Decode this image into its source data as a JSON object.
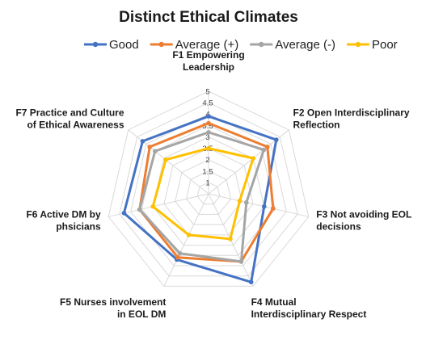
{
  "chart_data": {
    "type": "radar",
    "title": "Distinct Ethical Climates",
    "legend_position": "top",
    "grid": true,
    "rlim": [
      0.5,
      5
    ],
    "ticks": [
      "1",
      "1.5",
      "2",
      "2.5",
      "3",
      "3.5",
      "4",
      "4.5",
      "5"
    ],
    "categories": [
      [
        "F1 Empowering",
        "Leadership"
      ],
      [
        "F2 Open Interdisciplinary",
        "Reflection"
      ],
      [
        "F3 Not avoiding EOL",
        "decisions"
      ],
      [
        "F4 Mutual",
        "Interdisciplinary Respect"
      ],
      [
        "F5 Nurses involvement",
        "in EOL DM"
      ],
      [
        "F6 Active DM by",
        "phsicians"
      ],
      [
        "F7 Practice and Culture",
        "of Ethical Awareness"
      ]
    ],
    "series": [
      {
        "name": "Good",
        "color": "#4472C4",
        "values": [
          3.9,
          4.3,
          3.0,
          4.8,
          3.7,
          4.3,
          4.2
        ]
      },
      {
        "name": "Average (+)",
        "color": "#ED7D31",
        "values": [
          3.6,
          3.8,
          3.4,
          3.8,
          3.6,
          3.6,
          3.8
        ]
      },
      {
        "name": "Average (-)",
        "color": "#A5A5A5",
        "values": [
          3.2,
          3.6,
          2.2,
          3.8,
          3.4,
          3.6,
          3.5
        ]
      },
      {
        "name": "Poor",
        "color": "#FFC000",
        "values": [
          2.5,
          3.0,
          1.9,
          2.7,
          2.5,
          3.0,
          2.9
        ]
      }
    ]
  }
}
